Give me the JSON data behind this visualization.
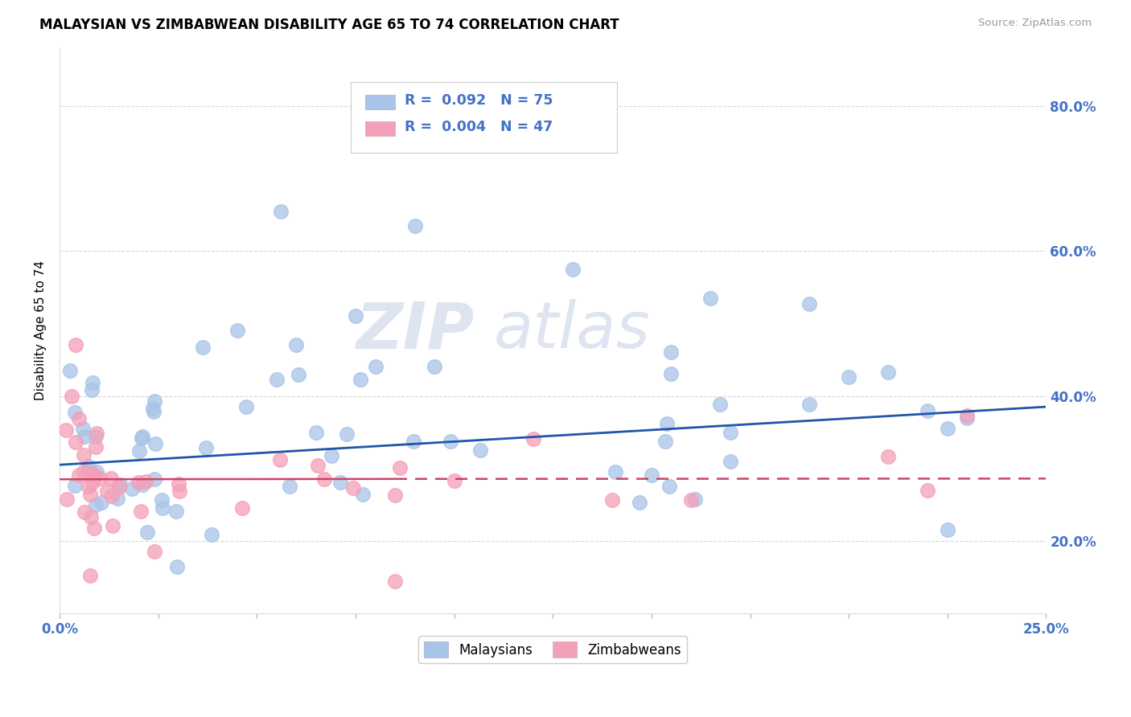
{
  "title": "MALAYSIAN VS ZIMBABWEAN DISABILITY AGE 65 TO 74 CORRELATION CHART",
  "source": "Source: ZipAtlas.com",
  "ylabel": "Disability Age 65 to 74",
  "r_malaysian": 0.092,
  "n_malaysian": 75,
  "r_zimbabwean": 0.004,
  "n_zimbabwean": 47,
  "malaysian_color": "#a8c4e8",
  "zimbabwean_color": "#f4a0b8",
  "malaysian_line_color": "#2255aa",
  "zimbabwean_line_color": "#cc4466",
  "text_color": "#4472c4",
  "xlim": [
    0.0,
    0.25
  ],
  "ylim": [
    0.1,
    0.88
  ],
  "ytick_positions": [
    0.2,
    0.4,
    0.6,
    0.8
  ],
  "ytick_labels": [
    "20.0%",
    "40.0%",
    "60.0%",
    "80.0%"
  ],
  "xtick_positions": [
    0.0,
    0.025,
    0.05,
    0.075,
    0.1,
    0.125,
    0.15,
    0.175,
    0.2,
    0.225,
    0.25
  ],
  "xtick_labels": [
    "0.0%",
    "",
    "",
    "",
    "",
    "",
    "",
    "",
    "",
    "",
    "25.0%"
  ],
  "malaysian_line_y0": 0.305,
  "malaysian_line_y1": 0.385,
  "zimbabwean_line_y0": 0.285,
  "zimbabwean_line_y1": 0.286,
  "watermark_zip": "ZIP",
  "watermark_atlas": "atlas"
}
